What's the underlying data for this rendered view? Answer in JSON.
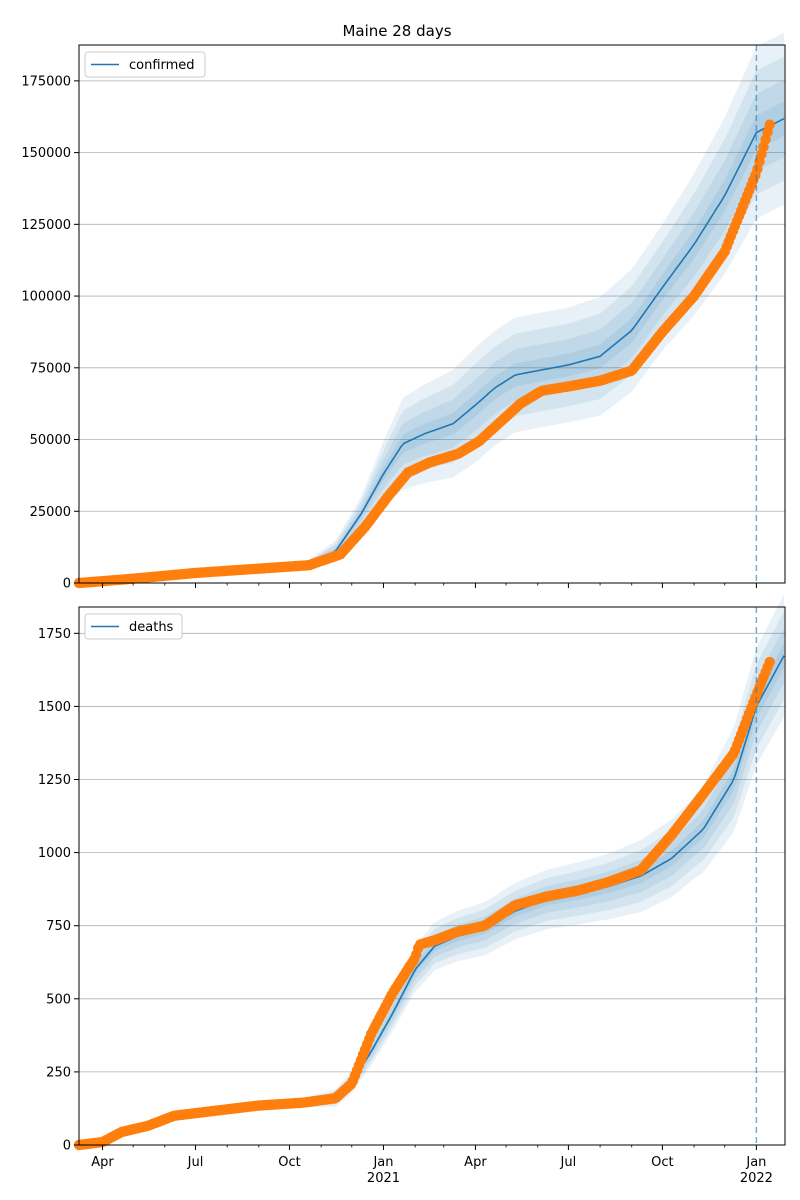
{
  "figure": {
    "title": "Maine 28 days"
  },
  "colors": {
    "model": "#1f77b4",
    "observed": "#ff7f0e",
    "band": "#1f77b4",
    "grid": "#b0b0b0"
  },
  "x_axis": {
    "ticks": [
      {
        "date": "2020-04-01",
        "label": "Apr"
      },
      {
        "date": "2020-07-01",
        "label": "Jul"
      },
      {
        "date": "2020-10-01",
        "label": "Oct"
      },
      {
        "date": "2021-01-01",
        "label": "Jan",
        "year": "2021"
      },
      {
        "date": "2021-04-01",
        "label": "Apr"
      },
      {
        "date": "2021-07-01",
        "label": "Jul"
      },
      {
        "date": "2021-10-01",
        "label": "Oct"
      },
      {
        "date": "2022-01-01",
        "label": "Jan",
        "year": "2022"
      }
    ],
    "range": [
      "2020-03-09",
      "2022-01-29"
    ],
    "forecast_start": "2022-01-01"
  },
  "chart_data": [
    {
      "type": "line",
      "title": "Maine 28 days",
      "legend": "confirmed",
      "legend_position": "upper-left",
      "grid": "horizontal",
      "ylim": [
        0,
        187500
      ],
      "yticks": [
        "0",
        "25000",
        "50000",
        "75000",
        "100000",
        "125000",
        "150000",
        "175000"
      ],
      "ytick_values": [
        0,
        25000,
        50000,
        75000,
        100000,
        125000,
        150000,
        175000
      ],
      "model": {
        "dates": [
          "2020-03-09",
          "2020-05-01",
          "2020-07-01",
          "2020-09-01",
          "2020-10-20",
          "2020-11-15",
          "2020-12-10",
          "2021-01-01",
          "2021-01-20",
          "2021-02-10",
          "2021-03-10",
          "2021-04-01",
          "2021-04-20",
          "2021-05-10",
          "2021-06-01",
          "2021-07-01",
          "2021-08-01",
          "2021-09-01",
          "2021-10-01",
          "2021-11-01",
          "2021-12-01",
          "2022-01-01",
          "2022-01-29"
        ],
        "values": [
          0,
          1500,
          3500,
          5000,
          6500,
          11000,
          24000,
          38000,
          48500,
          52000,
          55500,
          62000,
          68000,
          72500,
          74000,
          76000,
          79000,
          88000,
          103000,
          118000,
          135000,
          157000,
          162000
        ]
      },
      "band_width": {
        "dates": [
          "2020-03-09",
          "2020-10-20",
          "2020-12-10",
          "2021-01-20",
          "2021-04-01",
          "2021-07-01",
          "2021-10-01",
          "2022-01-01",
          "2022-01-29"
        ],
        "values": [
          400,
          1500,
          6000,
          16000,
          20000,
          20000,
          22000,
          30000,
          30000
        ]
      },
      "observed": {
        "dates": [
          "2020-03-09",
          "2020-05-01",
          "2020-07-01",
          "2020-09-01",
          "2020-10-20",
          "2020-11-20",
          "2020-12-15",
          "2021-01-05",
          "2021-01-25",
          "2021-02-15",
          "2021-03-15",
          "2021-04-05",
          "2021-04-25",
          "2021-05-15",
          "2021-06-05",
          "2021-07-01",
          "2021-08-01",
          "2021-09-01",
          "2021-10-01",
          "2021-11-01",
          "2021-12-01",
          "2022-01-01",
          "2022-01-15"
        ],
        "values": [
          0,
          1500,
          3500,
          5000,
          6200,
          10000,
          20000,
          30000,
          38500,
          42000,
          45000,
          49500,
          56000,
          62500,
          67000,
          68500,
          70500,
          74000,
          87500,
          100000,
          115500,
          143000,
          161000
        ]
      }
    },
    {
      "type": "line",
      "legend": "deaths",
      "legend_position": "upper-left",
      "grid": "horizontal",
      "ylim": [
        0,
        1840
      ],
      "yticks": [
        "0",
        "250",
        "500",
        "750",
        "1000",
        "1250",
        "1500",
        "1750"
      ],
      "ytick_values": [
        0,
        250,
        500,
        750,
        1000,
        1250,
        1500,
        1750
      ],
      "model": {
        "dates": [
          "2020-03-09",
          "2020-04-01",
          "2020-04-20",
          "2020-05-15",
          "2020-06-10",
          "2020-07-15",
          "2020-09-01",
          "2020-10-15",
          "2020-11-15",
          "2020-12-01",
          "2020-12-20",
          "2021-01-10",
          "2021-02-01",
          "2021-02-20",
          "2021-03-15",
          "2021-04-10",
          "2021-05-10",
          "2021-06-10",
          "2021-07-10",
          "2021-08-10",
          "2021-09-10",
          "2021-10-10",
          "2021-11-10",
          "2021-12-10",
          "2022-01-01",
          "2022-01-29"
        ],
        "values": [
          0,
          10,
          45,
          75,
          100,
          115,
          135,
          145,
          160,
          215,
          320,
          450,
          600,
          680,
          715,
          740,
          800,
          840,
          860,
          885,
          920,
          980,
          1080,
          1250,
          1500,
          1680
        ]
      },
      "band_width": {
        "dates": [
          "2020-03-09",
          "2020-10-15",
          "2020-12-15",
          "2021-02-10",
          "2021-05-01",
          "2021-08-01",
          "2021-11-01",
          "2022-01-01",
          "2022-01-29"
        ],
        "values": [
          4,
          15,
          45,
          80,
          95,
          110,
          140,
          200,
          210
        ]
      },
      "observed": {
        "dates": [
          "2020-03-09",
          "2020-04-01",
          "2020-04-20",
          "2020-05-15",
          "2020-06-10",
          "2020-07-15",
          "2020-09-01",
          "2020-10-15",
          "2020-11-15",
          "2020-12-01",
          "2020-12-20",
          "2021-01-10",
          "2021-02-01",
          "2021-02-05",
          "2021-02-20",
          "2021-03-15",
          "2021-04-10",
          "2021-05-10",
          "2021-06-10",
          "2021-07-10",
          "2021-08-10",
          "2021-09-10",
          "2021-10-10",
          "2021-11-10",
          "2021-12-10",
          "2022-01-01",
          "2022-01-15"
        ],
        "values": [
          0,
          10,
          45,
          65,
          100,
          115,
          135,
          145,
          160,
          210,
          380,
          520,
          640,
          685,
          700,
          730,
          750,
          820,
          850,
          870,
          900,
          940,
          1060,
          1200,
          1340,
          1540,
          1660
        ]
      }
    }
  ]
}
